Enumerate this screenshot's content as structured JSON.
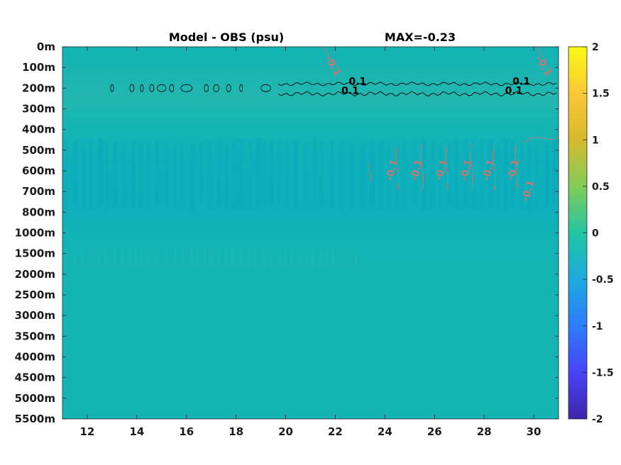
{
  "chart_data": {
    "type": "heatmap",
    "title": "Model - OBS (psu)",
    "max_label": "MAX=-0.23",
    "xlabel": "",
    "ylabel": "",
    "x_ticks": [
      12,
      14,
      16,
      18,
      20,
      22,
      24,
      26,
      28,
      30
    ],
    "xlim": [
      11,
      31
    ],
    "y_levels": [
      "0m",
      "100m",
      "200m",
      "300m",
      "400m",
      "500m",
      "600m",
      "700m",
      "800m",
      "1000m",
      "1500m",
      "2000m",
      "2500m",
      "3000m",
      "3500m",
      "4000m",
      "4500m",
      "5000m",
      "5500m"
    ],
    "colorbar": {
      "ticks": [
        "2",
        "1.5",
        "1",
        "0.5",
        "0",
        "-0.5",
        "-1",
        "-1.5",
        "-2"
      ],
      "range": [
        -2,
        2
      ],
      "colors": [
        "#3e26a8",
        "#4743f8",
        "#2c7dfb",
        "#1caadf",
        "#24c5a2",
        "#81cc59",
        "#d7ba2d",
        "#fcc737",
        "#f9fb14"
      ]
    },
    "field_base_color": "#14b3b5",
    "contours": [
      {
        "level": 0.1,
        "color": "#000000",
        "description_depth": "near 200m",
        "labels": [
          {
            "text": "0.1",
            "x": 22.9,
            "y_level": "200m"
          },
          {
            "text": "0.1",
            "x": 22.6,
            "y_level": "200m"
          },
          {
            "text": "0.1",
            "x": 29.5,
            "y_level": "200m"
          },
          {
            "text": "0.1",
            "x": 29.2,
            "y_level": "200m"
          }
        ]
      },
      {
        "level": -0.1,
        "color": "#c07a72",
        "labels": [
          {
            "text": "-0.1",
            "x": 21.8,
            "y_level": "100m"
          },
          {
            "text": "-0.1",
            "x": 30.3,
            "y_level": "100m"
          },
          {
            "text": "-0.1",
            "x": 24.4,
            "y_level": "600m"
          },
          {
            "text": "-0.1",
            "x": 25.4,
            "y_level": "600m"
          },
          {
            "text": "-0.1",
            "x": 26.4,
            "y_level": "600m"
          },
          {
            "text": "-0.1",
            "x": 27.4,
            "y_level": "600m"
          },
          {
            "text": "-0.1",
            "x": 28.3,
            "y_level": "600m"
          },
          {
            "text": "-0.1",
            "x": 29.3,
            "y_level": "600m"
          },
          {
            "text": "-0.1",
            "x": 29.9,
            "y_level": "700m"
          }
        ]
      }
    ]
  }
}
